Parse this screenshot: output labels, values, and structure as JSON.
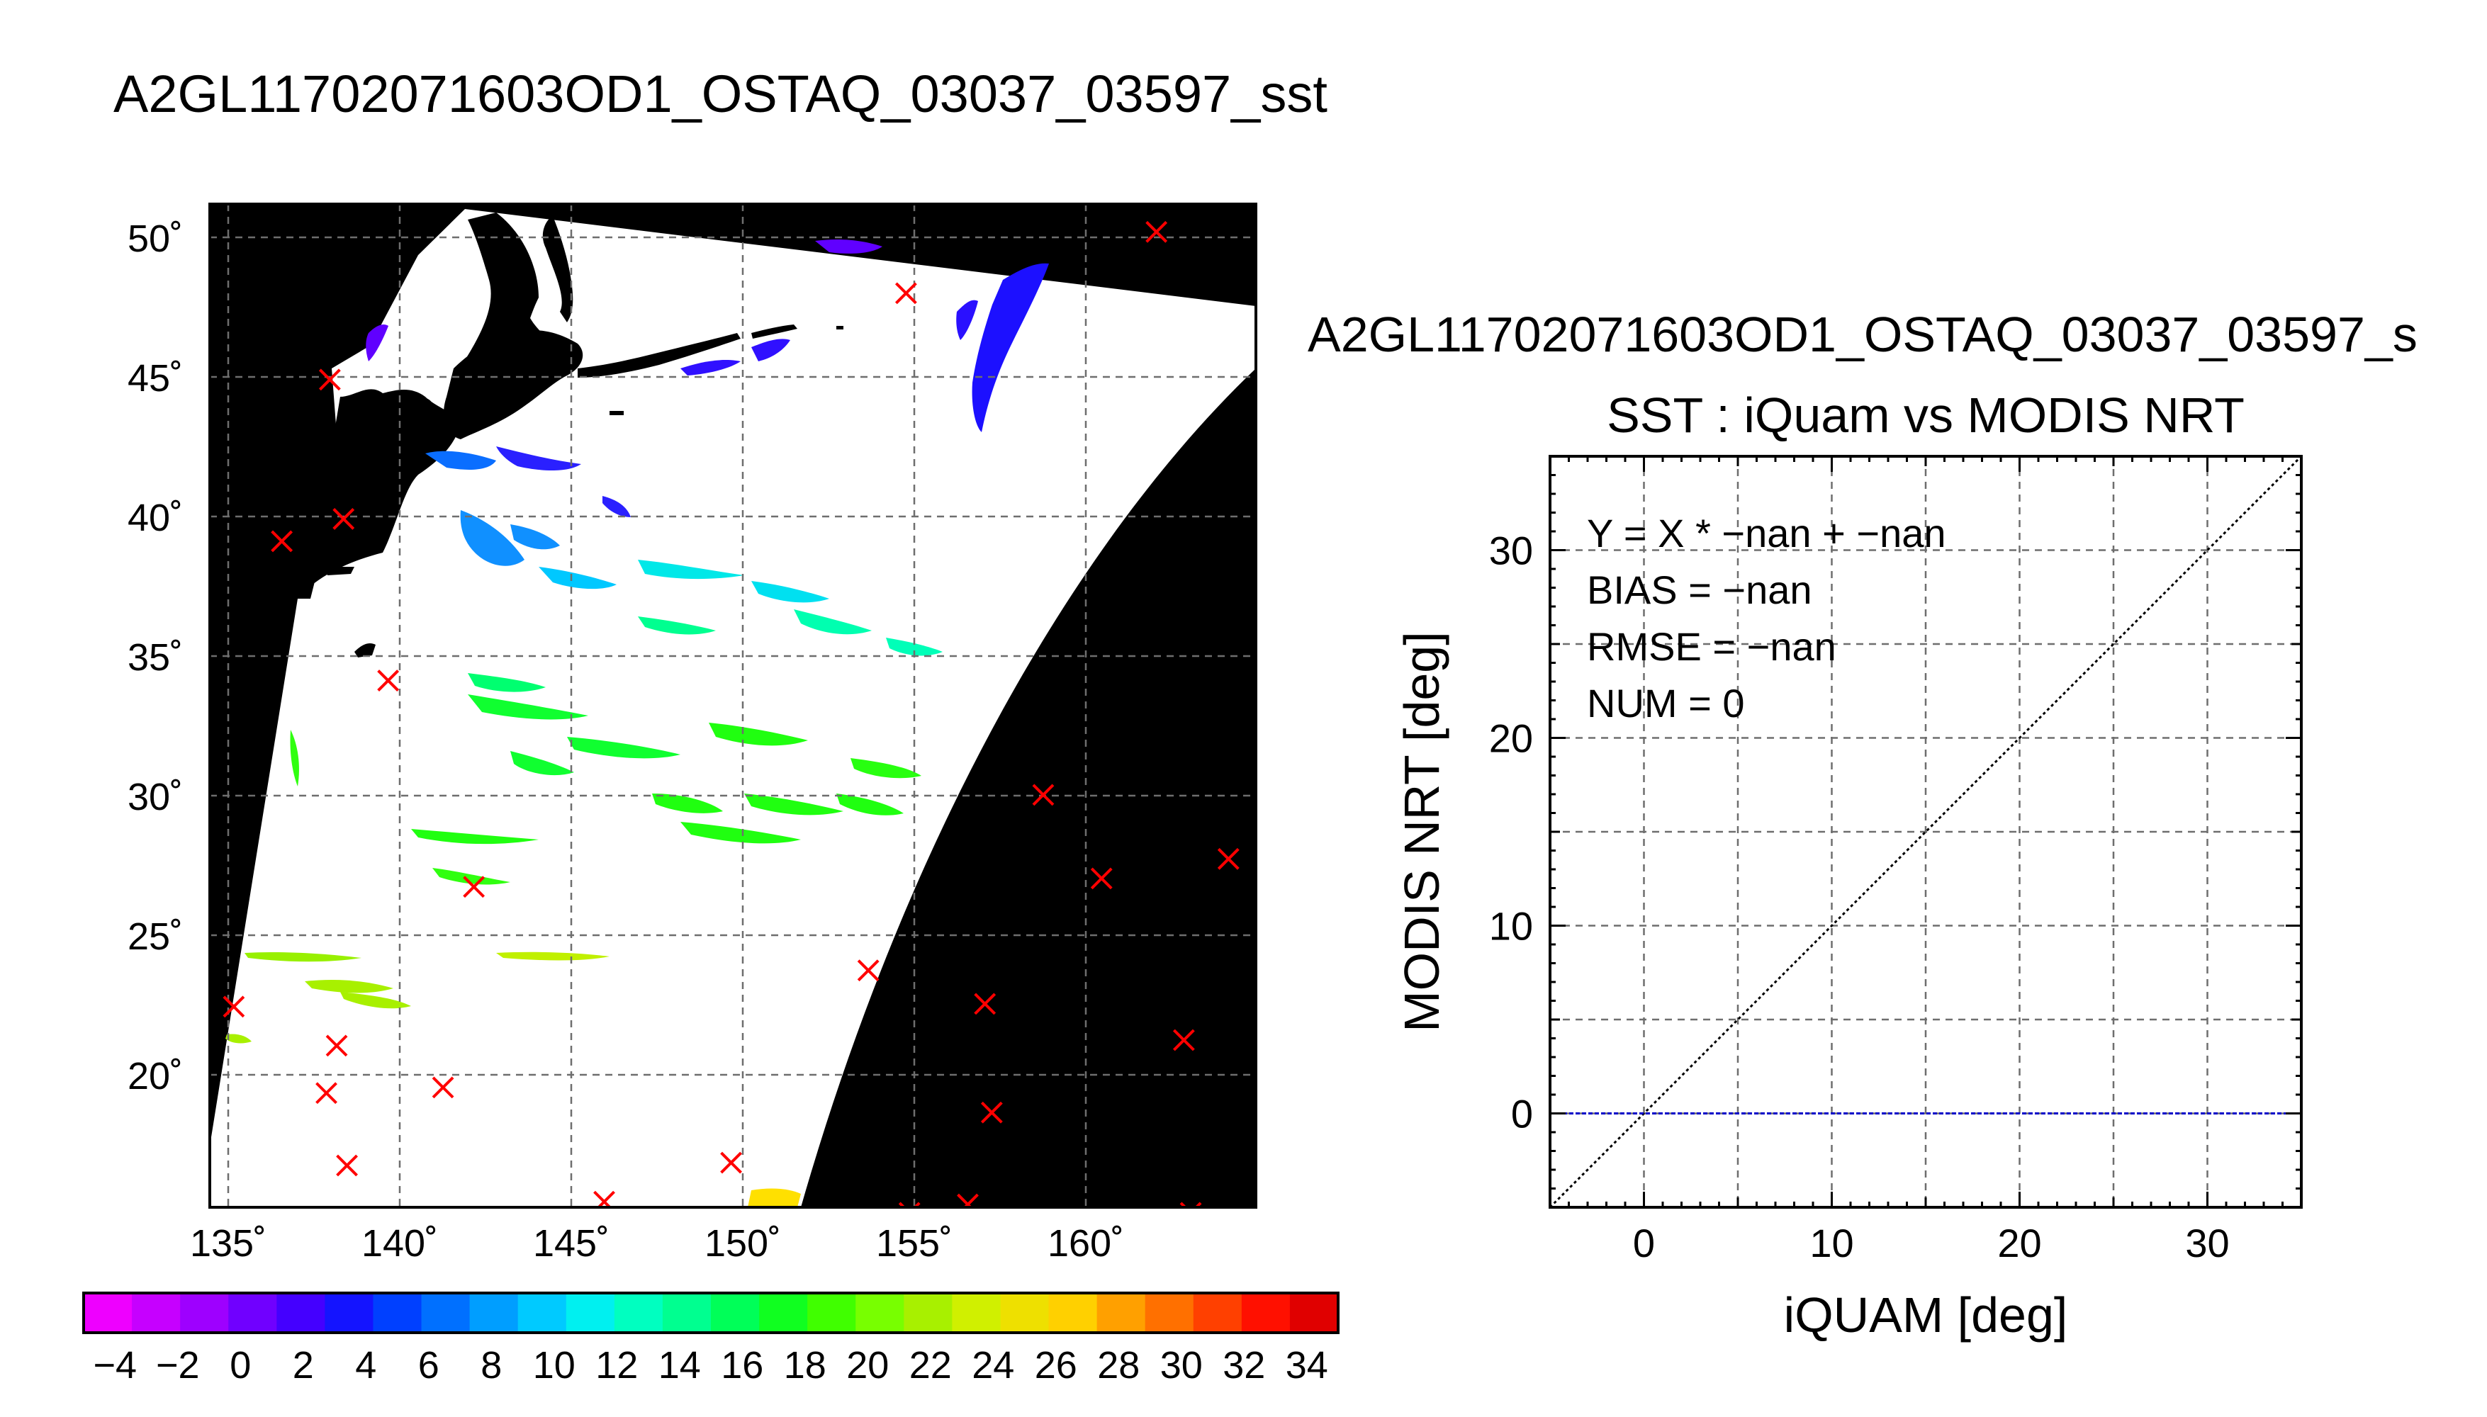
{
  "map_panel": {
    "title": "A2GL11702071603OD1_OSTAQ_03037_03597_sst",
    "lon_labels": [
      "135˚",
      "140˚",
      "145˚",
      "150˚",
      "155˚",
      "160˚"
    ],
    "lat_labels": [
      "50˚",
      "45˚",
      "40˚",
      "35˚",
      "30˚",
      "25˚",
      "20˚"
    ],
    "lon_range": [
      134.5,
      165
    ],
    "lat_range": [
      15.5,
      51.5
    ],
    "iquam_markers": [
      [
        162.1,
        50.5
      ],
      [
        154.8,
        48.3
      ],
      [
        138.0,
        45.2
      ],
      [
        138.4,
        40.2
      ],
      [
        136.6,
        39.4
      ],
      [
        139.7,
        34.4
      ],
      [
        158.8,
        30.3
      ],
      [
        160.5,
        27.3
      ],
      [
        164.2,
        28.0
      ],
      [
        142.2,
        27.0
      ],
      [
        153.7,
        24.0
      ],
      [
        157.1,
        22.8
      ],
      [
        135.2,
        22.7
      ],
      [
        138.2,
        21.3
      ],
      [
        162.9,
        21.5
      ],
      [
        141.3,
        19.8
      ],
      [
        137.9,
        19.6
      ],
      [
        157.3,
        18.9
      ],
      [
        138.5,
        17.0
      ],
      [
        149.7,
        17.1
      ],
      [
        146.0,
        15.7
      ],
      [
        154.9,
        15.3
      ],
      [
        156.6,
        15.6
      ],
      [
        163.1,
        15.3
      ]
    ],
    "marker_color": "#ff0000",
    "land_color": "#000000",
    "no_data_color": "#000000"
  },
  "colorbar": {
    "tick_labels": [
      "−4",
      "−2",
      "0",
      "2",
      "4",
      "6",
      "8",
      "10",
      "12",
      "14",
      "16",
      "18",
      "20",
      "22",
      "24",
      "26",
      "28",
      "30",
      "32",
      "34"
    ],
    "range": [
      -5,
      35
    ],
    "colors": [
      "#ee00ff",
      "#c600ff",
      "#9e00ff",
      "#7000ff",
      "#4400ff",
      "#1414ff",
      "#0040ff",
      "#0070ff",
      "#009eff",
      "#00caff",
      "#00f0f0",
      "#00ffc0",
      "#00ff90",
      "#00ff58",
      "#10ff20",
      "#40ff00",
      "#78ff00",
      "#a8f000",
      "#d0f000",
      "#eee000",
      "#ffd000",
      "#ffa000",
      "#ff7000",
      "#ff4000",
      "#ff1000",
      "#e00000"
    ]
  },
  "scatter_panel": {
    "header": "A2GL11702071603OD1_OSTAQ_03037_03597_s",
    "chart_data": {
      "type": "scatter",
      "title": "SST : iQuam vs MODIS NRT",
      "xlabel": "iQUAM [deg]",
      "ylabel": "MODIS NRT [deg]",
      "xlim": [
        -5,
        35
      ],
      "ylim": [
        -5,
        35
      ],
      "xticks": [
        0,
        10,
        20,
        30
      ],
      "yticks": [
        0,
        10,
        20,
        30
      ],
      "grid": true,
      "series": [],
      "reference_lines": [
        {
          "type": "identity",
          "style": "dotted",
          "color": "#000000"
        },
        {
          "type": "horizontal",
          "y": 0,
          "style": "dashed",
          "color": "#0000c8"
        }
      ],
      "stats": {
        "fit": "Y = X * −nan + −nan",
        "bias": "BIAS = −nan",
        "rmse": "RMSE = −nan",
        "num": "NUM = 0"
      }
    }
  }
}
